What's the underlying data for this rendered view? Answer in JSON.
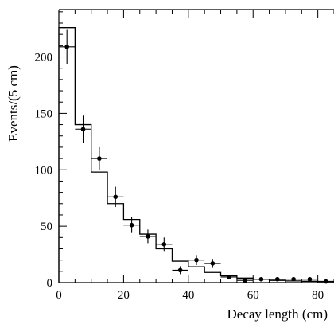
{
  "chart_data": {
    "type": "histogram",
    "xlabel": "Decay length (cm)",
    "ylabel": "Events/(5 cm)",
    "xlim": [
      0,
      85
    ],
    "ylim": [
      0,
      242
    ],
    "grid": false,
    "x_ticks": [
      0,
      20,
      40,
      60,
      80
    ],
    "y_ticks": [
      0,
      50,
      100,
      150,
      200
    ],
    "x_tick_labels": [
      "0",
      "20",
      "40",
      "60",
      "80"
    ],
    "y_tick_labels": [
      "0",
      "50",
      "100",
      "150",
      "200"
    ],
    "bin_width": 5,
    "series": [
      {
        "style": "histogram-step",
        "bin_edges": [
          0,
          5,
          10,
          15,
          20,
          25,
          30,
          35,
          40,
          45,
          50,
          55,
          60,
          65,
          70,
          75,
          80,
          85
        ],
        "values": [
          226,
          140,
          98,
          70,
          56,
          43,
          30,
          19,
          14,
          9,
          6,
          4,
          3,
          2,
          1.5,
          1.2,
          1
        ]
      },
      {
        "style": "points-with-error-bars",
        "x": [
          2.5,
          7.5,
          12.5,
          17.5,
          22.5,
          27.5,
          32.5,
          37.5,
          42.5,
          47.5,
          52.5,
          57.5,
          62.5,
          67.5,
          72.5,
          77.5,
          82.5
        ],
        "y": [
          209,
          136,
          110,
          76,
          51,
          41,
          34,
          11,
          20,
          17,
          5,
          2,
          3,
          3,
          3,
          3,
          1
        ],
        "yerr": [
          15,
          12,
          10,
          9,
          7,
          6,
          6,
          3.5,
          4.5,
          4,
          2,
          1.5,
          1.7,
          1.7,
          1.7,
          1.7,
          1
        ]
      }
    ]
  }
}
